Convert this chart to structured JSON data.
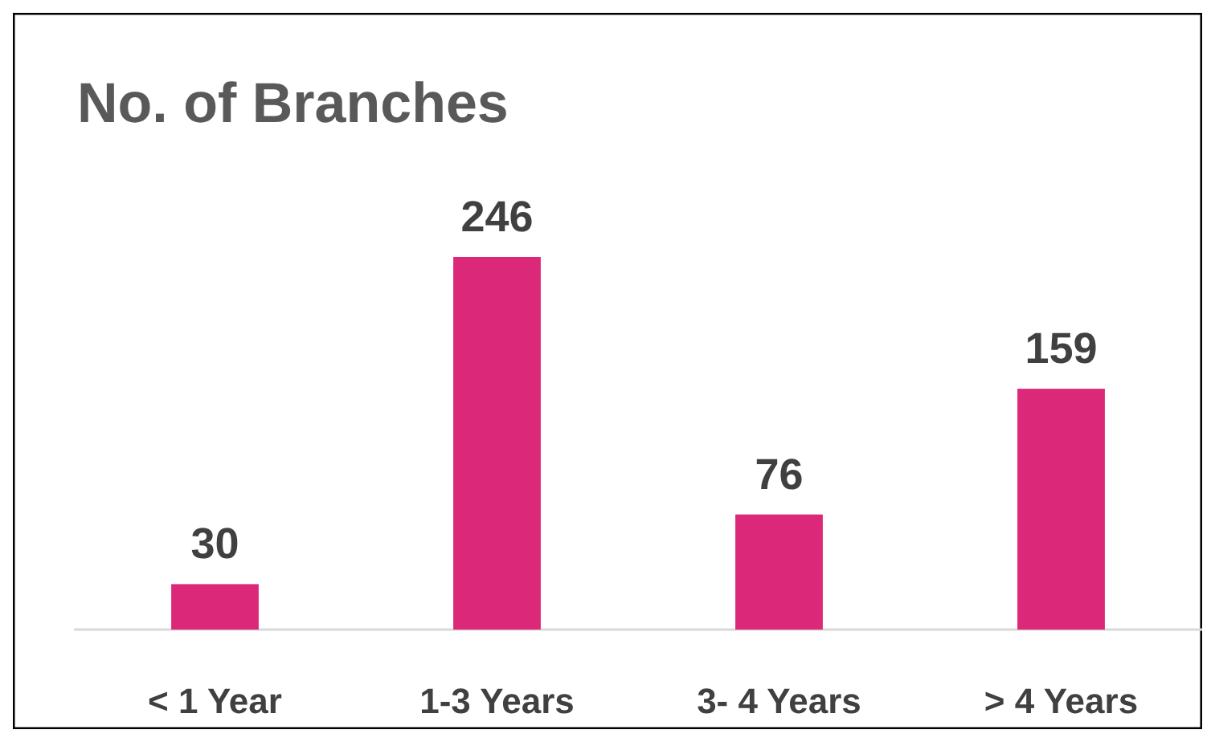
{
  "chart_data": {
    "type": "bar",
    "title": "No. of Branches",
    "categories": [
      "< 1 Year",
      "1-3 Years",
      "3- 4 Years",
      "> 4 Years"
    ],
    "values": [
      30,
      246,
      76,
      159
    ],
    "color": "#dc2878",
    "data_labels": true
  }
}
